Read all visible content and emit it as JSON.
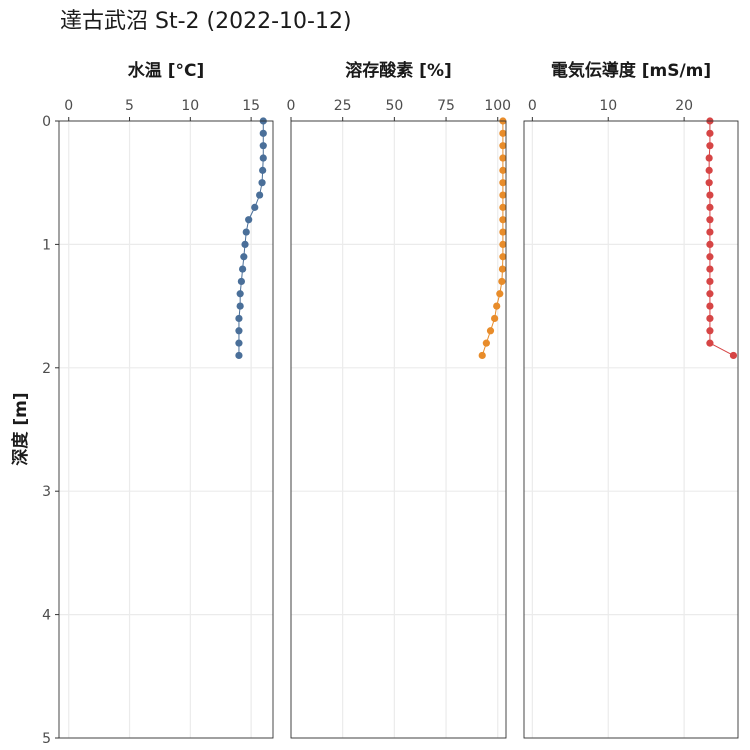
{
  "chart_data": {
    "type": "scatter",
    "title": "達古武沼 St-2 (2022-10-12)",
    "ylabel": "深度 [m]",
    "ylim": [
      0,
      5
    ],
    "y_reversed": true,
    "y_ticks": [
      "0",
      "1",
      "2",
      "3",
      "4",
      "5"
    ],
    "grid": true,
    "depth": [
      0.0,
      0.1,
      0.2,
      0.3,
      0.4,
      0.5,
      0.6,
      0.7,
      0.8,
      0.9,
      1.0,
      1.1,
      1.2,
      1.3,
      1.4,
      1.5,
      1.6,
      1.7,
      1.8,
      1.9
    ],
    "panels": [
      {
        "title": "水温 [°C]",
        "xlim": [
          -0.8,
          16.8
        ],
        "x_ticks": [
          0,
          5,
          10,
          15
        ],
        "x_tick_labels": [
          "0",
          "5",
          "10",
          "15"
        ],
        "color": "#4a6f99",
        "values": [
          16.0,
          16.0,
          16.0,
          16.0,
          15.95,
          15.9,
          15.7,
          15.3,
          14.8,
          14.6,
          14.5,
          14.4,
          14.3,
          14.2,
          14.1,
          14.1,
          14.0,
          14.0,
          14.0,
          14.0
        ]
      },
      {
        "title": "溶存酸素 [%]",
        "xlim": [
          0,
          104
        ],
        "x_ticks": [
          0,
          25,
          50,
          75,
          100
        ],
        "x_tick_labels": [
          "0",
          "25",
          "50",
          "75",
          "100"
        ],
        "color": "#e88c2a",
        "values": [
          102.5,
          102.5,
          102.5,
          102.5,
          102.5,
          102.5,
          102.5,
          102.5,
          102.5,
          102.5,
          102.5,
          102.5,
          102.3,
          102.0,
          101.0,
          99.5,
          98.5,
          96.5,
          94.5,
          92.5
        ]
      },
      {
        "title": "電気伝導度 [mS/m]",
        "xlim": [
          -1.1,
          27.1
        ],
        "x_ticks": [
          0,
          10,
          20
        ],
        "x_tick_labels": [
          "0",
          "10",
          "20"
        ],
        "color": "#d64545",
        "values": [
          23.4,
          23.4,
          23.4,
          23.3,
          23.3,
          23.3,
          23.4,
          23.4,
          23.4,
          23.4,
          23.4,
          23.4,
          23.4,
          23.4,
          23.4,
          23.4,
          23.4,
          23.4,
          23.4,
          26.5
        ]
      }
    ]
  }
}
